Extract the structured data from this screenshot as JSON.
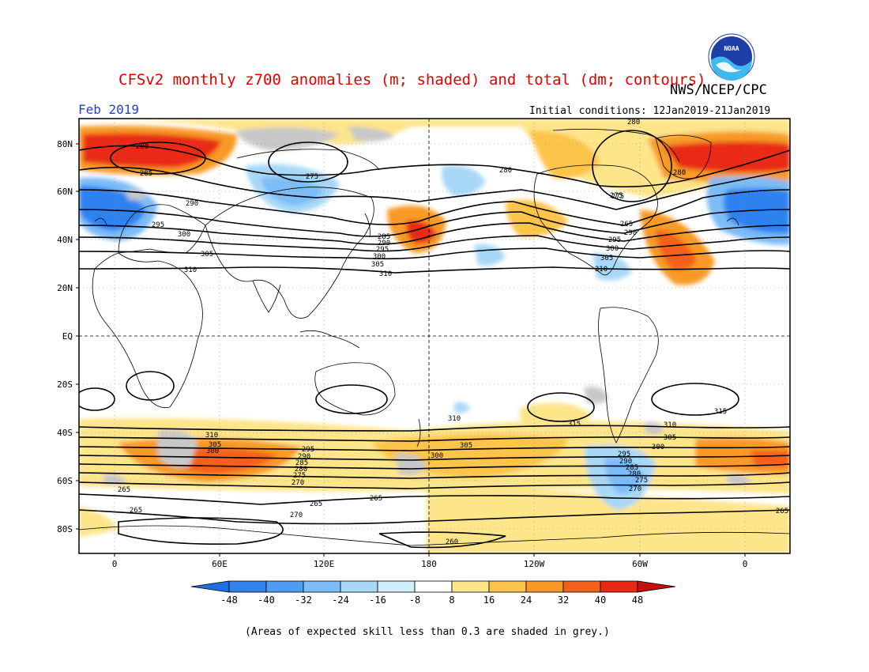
{
  "header": {
    "title": "CFSv2 monthly z700 anomalies (m; shaded) and total (dm; contours)",
    "agency": "NWS/NCEP/CPC",
    "month": "Feb 2019",
    "initial_conditions": "Initial conditions: 12Jan2019-21Jan2019",
    "logo_text": "NOAA"
  },
  "footnote": "(Areas of expected skill less than 0.3 are shaded in grey.)",
  "axes": {
    "lat_labels": [
      "80N",
      "60N",
      "40N",
      "20N",
      "EQ",
      "20S",
      "40S",
      "60S",
      "80S"
    ],
    "lon_labels": [
      "0",
      "60E",
      "120E",
      "180",
      "120W",
      "60W",
      "0"
    ]
  },
  "colorbar": {
    "ticks": [
      "-48",
      "-40",
      "-32",
      "-24",
      "-16",
      "-8",
      "8",
      "16",
      "24",
      "32",
      "40",
      "48"
    ],
    "colors": [
      "#1e6ee6",
      "#2f82f0",
      "#4f9cf5",
      "#7cbcf7",
      "#a7d8f7",
      "#cdeefa",
      "#ffffff",
      "#fde58a",
      "#fcc44a",
      "#f89a25",
      "#f4601a",
      "#e82a14",
      "#c41010"
    ]
  },
  "contour_labels": [
    "275",
    "280",
    "280",
    "285",
    "290",
    "295",
    "300",
    "305",
    "310",
    "275",
    "285",
    "290",
    "295",
    "300",
    "305",
    "310",
    "280",
    "275",
    "265",
    "290",
    "295",
    "300",
    "305",
    "310",
    "280",
    "310",
    "305",
    "300",
    "295",
    "290",
    "285",
    "280",
    "275",
    "270",
    "265",
    "300",
    "305",
    "310",
    "315",
    "315",
    "310",
    "305",
    "300",
    "295",
    "290",
    "285",
    "280",
    "275",
    "270",
    "265",
    "265",
    "265",
    "270",
    "260",
    "265"
  ]
}
